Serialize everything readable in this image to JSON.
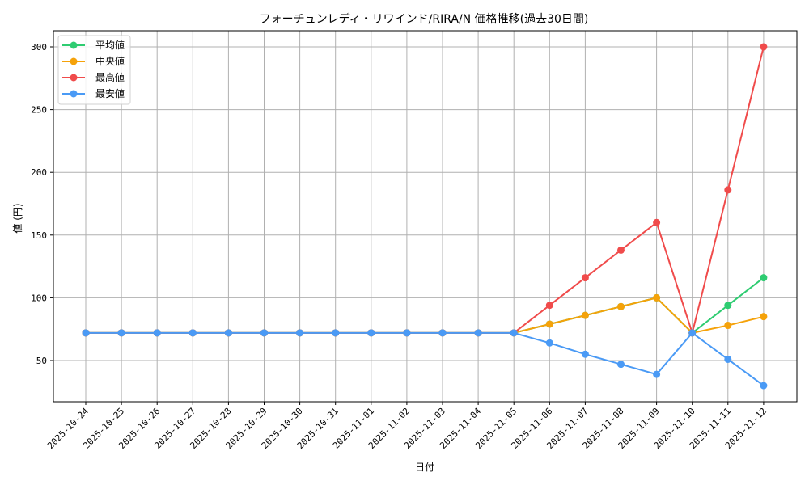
{
  "chart_data": {
    "type": "line",
    "title": "フォーチュンレディ・リワインド/RIRA/N 価格推移(過去30日間)",
    "xlabel": "日付",
    "ylabel": "値 (円)",
    "ylim": [
      16,
      313
    ],
    "yticks": [
      50,
      100,
      150,
      200,
      250,
      300
    ],
    "grid": true,
    "legend_position": "upper left",
    "categories": [
      "2025-10-24",
      "2025-10-25",
      "2025-10-26",
      "2025-10-27",
      "2025-10-28",
      "2025-10-29",
      "2025-10-30",
      "2025-10-31",
      "2025-11-01",
      "2025-11-02",
      "2025-11-03",
      "2025-11-04",
      "2025-11-05",
      "2025-11-06",
      "2025-11-07",
      "2025-11-08",
      "2025-11-09",
      "2025-11-10",
      "2025-11-11",
      "2025-11-12"
    ],
    "series": [
      {
        "name": "平均値",
        "color": "#2ecc71",
        "values": [
          72,
          72,
          72,
          72,
          72,
          72,
          72,
          72,
          72,
          72,
          72,
          72,
          72,
          79,
          86,
          93,
          100,
          72,
          94,
          116
        ]
      },
      {
        "name": "中央値",
        "color": "#f5a20a",
        "values": [
          72,
          72,
          72,
          72,
          72,
          72,
          72,
          72,
          72,
          72,
          72,
          72,
          72,
          79,
          86,
          93,
          100,
          72,
          78,
          85
        ]
      },
      {
        "name": "最高値",
        "color": "#f04b4b",
        "values": [
          72,
          72,
          72,
          72,
          72,
          72,
          72,
          72,
          72,
          72,
          72,
          72,
          72,
          94,
          116,
          138,
          160,
          72,
          186,
          300
        ]
      },
      {
        "name": "最安値",
        "color": "#4a9af5",
        "values": [
          72,
          72,
          72,
          72,
          72,
          72,
          72,
          72,
          72,
          72,
          72,
          72,
          72,
          64,
          55,
          47,
          39,
          72,
          51,
          30
        ]
      }
    ]
  }
}
